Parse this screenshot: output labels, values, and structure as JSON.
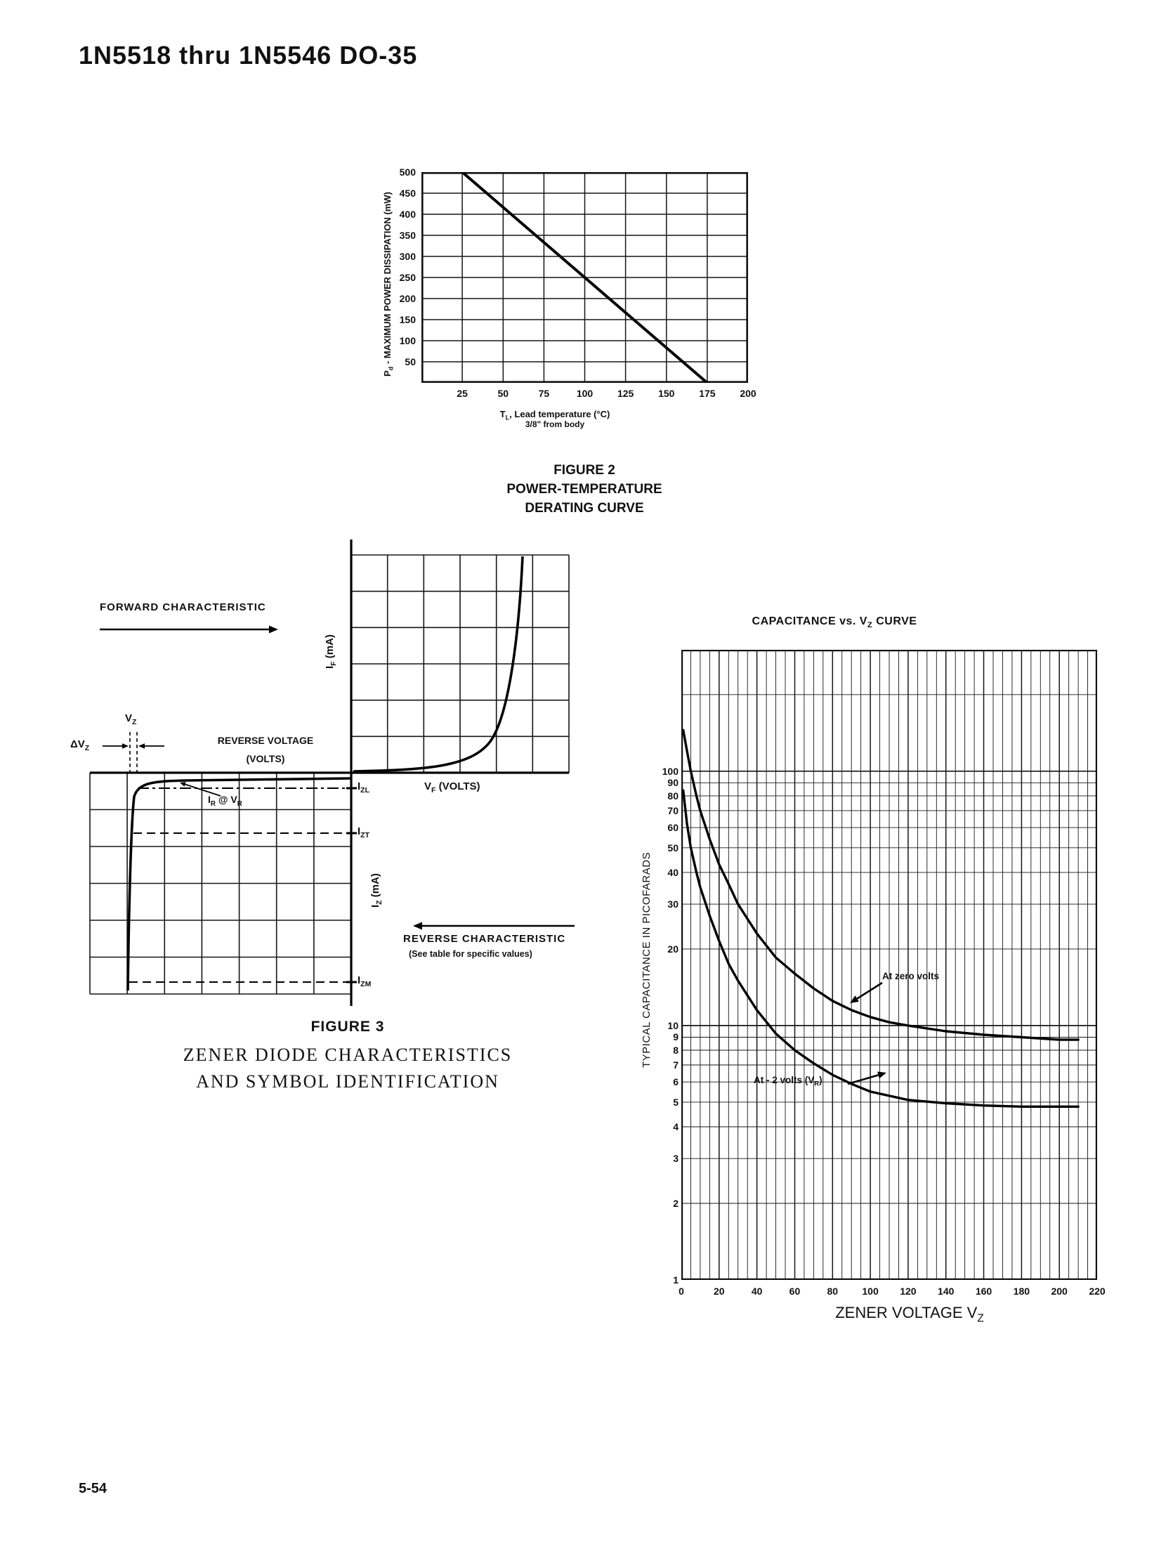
{
  "header": {
    "title": "1N5518 thru 1N5546 DO-35"
  },
  "footer": {
    "page_number": "5-54"
  },
  "fig2": {
    "caption_line1": "FIGURE 2",
    "caption_line2": "POWER-TEMPERATURE",
    "caption_line3": "DERATING CURVE",
    "y_axis_label": [
      {
        "t": "P"
      },
      {
        "t": "d",
        "sub": true
      },
      {
        "t": " - MAXIMUM POWER DISSIPATION (mW)"
      }
    ],
    "x_axis_label": [
      {
        "t": "T"
      },
      {
        "t": "L",
        "sub": true
      },
      {
        "t": ", Lead temperature (°C)"
      }
    ],
    "x_axis_label2": "3/8\" from body"
  },
  "fig3": {
    "forward_characteristic": "FORWARD CHARACTERISTIC",
    "if_label": [
      {
        "t": "I"
      },
      {
        "t": "F",
        "sub": true
      },
      {
        "t": " (mA)"
      }
    ],
    "vz_label": [
      {
        "t": "V"
      },
      {
        "t": "Z",
        "sub": true
      }
    ],
    "delta_vz_label": [
      {
        "t": "ΔV"
      },
      {
        "t": "Z",
        "sub": true
      }
    ],
    "reverse_voltage_line1": "REVERSE VOLTAGE",
    "reverse_voltage_line2": "(VOLTS)",
    "ir_at_vr_label": [
      {
        "t": "I"
      },
      {
        "t": "R",
        "sub": true
      },
      {
        "t": " @ V"
      },
      {
        "t": "R",
        "sub": true
      }
    ],
    "izl_label": [
      {
        "t": "I"
      },
      {
        "t": "ZL",
        "sub": true
      }
    ],
    "izt_label": [
      {
        "t": "I"
      },
      {
        "t": "ZT",
        "sub": true
      }
    ],
    "iz_label": [
      {
        "t": "I"
      },
      {
        "t": "Z",
        "sub": true
      },
      {
        "t": " (mA)"
      }
    ],
    "vf_label": [
      {
        "t": "V"
      },
      {
        "t": "F",
        "sub": true
      },
      {
        "t": " (VOLTS)"
      }
    ],
    "reverse_characteristic": "REVERSE CHARACTERISTIC",
    "see_table_note": "(See table for specific values)",
    "izm_label": [
      {
        "t": "I"
      },
      {
        "t": "ZM",
        "sub": true
      }
    ],
    "caption_line1": "FIGURE 3",
    "caption_line2": "ZENER DIODE CHARACTERISTICS",
    "caption_line3": "AND SYMBOL IDENTIFICATION"
  },
  "cap": {
    "title": [
      {
        "t": "CAPACITANCE vs. V"
      },
      {
        "t": "Z",
        "sub": true
      },
      {
        "t": " CURVE"
      }
    ],
    "y_axis_label": "TYPICAL CAPACITANCE IN PICOFARADS",
    "x_axis_label": [
      {
        "t": "ZENER VOLTAGE V"
      },
      {
        "t": "Z",
        "sub": true
      }
    ],
    "annotation_zero_volts": "At zero volts",
    "annotation_minus2_volts": [
      {
        "t": "At - 2 volts (V"
      },
      {
        "t": "R",
        "sub": true
      },
      {
        "t": ")"
      }
    ]
  },
  "chart_data": [
    {
      "id": "power_temperature_derating",
      "type": "line",
      "title": "FIGURE 2 POWER-TEMPERATURE DERATING CURVE",
      "xlabel": "TL, Lead temperature (°C), 3/8\" from body",
      "ylabel": "Pd - MAXIMUM POWER DISSIPATION (mW)",
      "xlim": [
        0,
        200
      ],
      "ylim": [
        0,
        500
      ],
      "x_ticks": [
        25,
        50,
        75,
        100,
        125,
        150,
        175,
        200
      ],
      "y_ticks": [
        50,
        100,
        150,
        200,
        250,
        300,
        350,
        400,
        450,
        500
      ],
      "grid": true,
      "series": [
        {
          "name": "maximum power dissipation",
          "x": [
            25,
            175
          ],
          "y": [
            500,
            0
          ]
        }
      ]
    },
    {
      "id": "capacitance_vs_vz",
      "type": "line",
      "title": "CAPACITANCE vs. VZ CURVE",
      "xlabel": "ZENER VOLTAGE VZ",
      "ylabel": "TYPICAL CAPACITANCE IN PICOFARADS",
      "xlim": [
        0,
        220
      ],
      "x_ticks": [
        0,
        20,
        40,
        60,
        80,
        100,
        120,
        140,
        160,
        180,
        200,
        220
      ],
      "x_minor_step": 5,
      "y_scale": "log",
      "ylim": [
        1,
        300
      ],
      "y_ticks": [
        100,
        90,
        80,
        70,
        60,
        50,
        40,
        30,
        20,
        10,
        9,
        8,
        7,
        6,
        5,
        4,
        3,
        2,
        1
      ],
      "grid": true,
      "legend_position": "inline-annotations",
      "series": [
        {
          "name": "At zero volts",
          "x": [
            1,
            3,
            5,
            8,
            10,
            15,
            20,
            25,
            30,
            40,
            50,
            60,
            70,
            80,
            90,
            100,
            110,
            120,
            140,
            160,
            180,
            200,
            210
          ],
          "y": [
            145,
            120,
            100,
            80,
            70,
            54,
            43,
            36,
            30,
            23,
            18.5,
            16,
            14,
            12.5,
            11.5,
            10.8,
            10.3,
            10,
            9.5,
            9.2,
            9,
            8.8,
            8.8
          ]
        },
        {
          "name": "At - 2 volts (VR)",
          "x": [
            1,
            3,
            5,
            8,
            10,
            15,
            20,
            25,
            30,
            40,
            50,
            60,
            70,
            80,
            90,
            100,
            120,
            140,
            160,
            180,
            200,
            210
          ],
          "y": [
            84,
            62,
            50,
            40,
            35,
            27,
            21.5,
            17.5,
            15,
            11.5,
            9.3,
            8,
            7.1,
            6.4,
            5.9,
            5.5,
            5.1,
            4.95,
            4.85,
            4.8,
            4.8,
            4.8
          ]
        }
      ]
    }
  ]
}
